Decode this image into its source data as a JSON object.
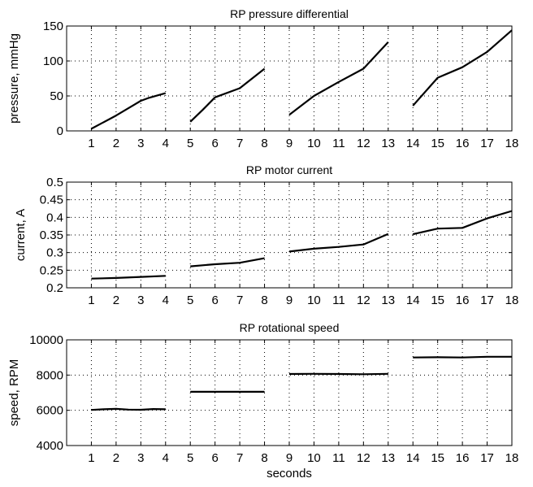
{
  "chart_data": [
    {
      "type": "line",
      "title": "RP pressure differential",
      "xlabel": "",
      "ylabel": "pressure, mmHg",
      "xlim": [
        0,
        18
      ],
      "ylim": [
        0,
        150
      ],
      "xticks": [
        1,
        2,
        3,
        4,
        5,
        6,
        7,
        8,
        9,
        10,
        11,
        12,
        13,
        14,
        15,
        16,
        17,
        18
      ],
      "yticks": [
        0,
        50,
        100,
        150
      ],
      "ytick_labels": [
        "0",
        "50",
        "100",
        "150"
      ],
      "grid": true,
      "segments": [
        {
          "x": [
            1,
            2,
            3,
            3.3,
            4
          ],
          "y": [
            3,
            22,
            43,
            47,
            54
          ]
        },
        {
          "x": [
            5,
            5.5,
            6,
            7,
            8
          ],
          "y": [
            13,
            30,
            48,
            61,
            89
          ]
        },
        {
          "x": [
            9,
            10,
            11,
            12,
            13
          ],
          "y": [
            23,
            50,
            70,
            89,
            127
          ]
        },
        {
          "x": [
            14,
            15,
            16,
            17,
            18
          ],
          "y": [
            36,
            76,
            91,
            113,
            144
          ]
        }
      ]
    },
    {
      "type": "line",
      "title": "RP motor current",
      "xlabel": "",
      "ylabel": "current, A",
      "xlim": [
        0,
        18
      ],
      "ylim": [
        0.2,
        0.5
      ],
      "xticks": [
        1,
        2,
        3,
        4,
        5,
        6,
        7,
        8,
        9,
        10,
        11,
        12,
        13,
        14,
        15,
        16,
        17,
        18
      ],
      "yticks": [
        0.2,
        0.25,
        0.3,
        0.35,
        0.4,
        0.45,
        0.5
      ],
      "ytick_labels": [
        "0.2",
        "0.25",
        "0.3",
        "0.35",
        "0.4",
        "0.45",
        "0.5"
      ],
      "grid": true,
      "segments": [
        {
          "x": [
            1,
            2,
            3,
            4
          ],
          "y": [
            0.226,
            0.228,
            0.231,
            0.234
          ]
        },
        {
          "x": [
            5,
            6,
            7,
            8
          ],
          "y": [
            0.261,
            0.267,
            0.271,
            0.284
          ]
        },
        {
          "x": [
            9,
            10,
            11,
            12,
            13
          ],
          "y": [
            0.303,
            0.311,
            0.316,
            0.323,
            0.353
          ]
        },
        {
          "x": [
            14,
            15,
            16,
            17,
            18
          ],
          "y": [
            0.352,
            0.368,
            0.37,
            0.397,
            0.418
          ]
        }
      ]
    },
    {
      "type": "line",
      "title": "RP rotational speed",
      "xlabel": "seconds",
      "ylabel": "speed, RPM",
      "xlim": [
        0,
        18
      ],
      "ylim": [
        4000,
        10000
      ],
      "xticks": [
        1,
        2,
        3,
        4,
        5,
        6,
        7,
        8,
        9,
        10,
        11,
        12,
        13,
        14,
        15,
        16,
        17,
        18
      ],
      "yticks": [
        4000,
        6000,
        8000,
        10000
      ],
      "ytick_labels": [
        "4000",
        "6000",
        "8000",
        "10000"
      ],
      "grid": true,
      "segments": [
        {
          "x": [
            1,
            1.5,
            2,
            2.5,
            3,
            3.5,
            4
          ],
          "y": [
            6020,
            6060,
            6080,
            6040,
            6030,
            6070,
            6060
          ]
        },
        {
          "x": [
            5,
            6,
            7,
            8
          ],
          "y": [
            7050,
            7050,
            7050,
            7050
          ]
        },
        {
          "x": [
            9,
            10,
            11,
            12,
            13
          ],
          "y": [
            8060,
            8070,
            8060,
            8050,
            8070
          ]
        },
        {
          "x": [
            14,
            15,
            16,
            17,
            18
          ],
          "y": [
            9000,
            9010,
            9000,
            9040,
            9040
          ]
        }
      ]
    }
  ]
}
